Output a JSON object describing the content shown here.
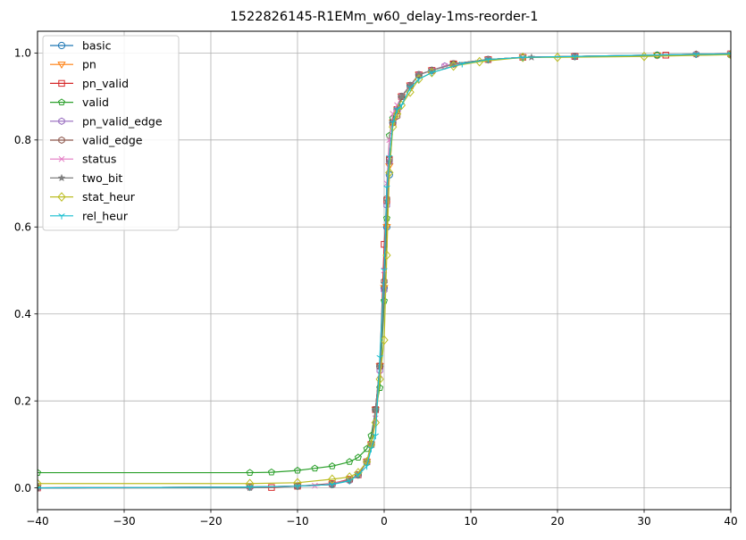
{
  "chart_data": {
    "type": "line",
    "title": "1522826145-R1EMm_w60_delay-1ms-reorder-1",
    "xlabel": "",
    "ylabel": "",
    "xlim": [
      -40,
      40
    ],
    "ylim": [
      -0.05,
      1.05
    ],
    "xticks": [
      -40,
      -30,
      -20,
      -10,
      0,
      10,
      20,
      30,
      40
    ],
    "xtick_labels": [
      "−40",
      "−30",
      "−20",
      "−10",
      "0",
      "10",
      "20",
      "30",
      "40"
    ],
    "yticks": [
      0.0,
      0.2,
      0.4,
      0.6,
      0.8,
      1.0
    ],
    "ytick_labels": [
      "0.0",
      "0.2",
      "0.4",
      "0.6",
      "0.8",
      "1.0"
    ],
    "grid": true,
    "legend_position": "upper-left",
    "series": [
      {
        "name": "basic",
        "color": "#1f77b4",
        "marker": "circle",
        "x": [
          -40,
          -15.5,
          -10,
          -6,
          -4,
          -3,
          -2,
          -1.5,
          -1,
          -0.5,
          0,
          0.3,
          0.6,
          1,
          1.5,
          2,
          3,
          4,
          5.5,
          8,
          12,
          16,
          22,
          31.5,
          40
        ],
        "y": [
          0.0,
          0.002,
          0.004,
          0.008,
          0.018,
          0.03,
          0.06,
          0.1,
          0.18,
          0.28,
          0.46,
          0.6,
          0.72,
          0.84,
          0.87,
          0.9,
          0.925,
          0.95,
          0.96,
          0.975,
          0.985,
          0.99,
          0.992,
          0.995,
          0.996
        ]
      },
      {
        "name": "pn",
        "color": "#ff7f0e",
        "marker": "triangle-down",
        "x": [
          -40,
          -15.5,
          -10,
          -6,
          -4,
          -3,
          -2,
          -1.5,
          -1,
          -0.5,
          0,
          0.3,
          0.6,
          1,
          1.5,
          2,
          3,
          4,
          5.5,
          8,
          12,
          16,
          22,
          31.5,
          40
        ],
        "y": [
          0.0,
          0.002,
          0.004,
          0.008,
          0.018,
          0.03,
          0.06,
          0.1,
          0.18,
          0.28,
          0.46,
          0.6,
          0.74,
          0.84,
          0.87,
          0.9,
          0.925,
          0.95,
          0.96,
          0.975,
          0.985,
          0.99,
          0.992,
          0.995,
          0.997
        ]
      },
      {
        "name": "pn_valid",
        "color": "#d62728",
        "marker": "square",
        "x": [
          -40,
          -13,
          -10,
          -6,
          -4,
          -3,
          -2,
          -1.5,
          -1,
          -0.5,
          0,
          0.3,
          0.6,
          1,
          1.5,
          2,
          3,
          4,
          5.5,
          8,
          12,
          16,
          22,
          32.5,
          40
        ],
        "y": [
          0.0,
          0.001,
          0.004,
          0.01,
          0.02,
          0.03,
          0.06,
          0.1,
          0.18,
          0.28,
          0.56,
          0.66,
          0.755,
          0.84,
          0.87,
          0.9,
          0.925,
          0.95,
          0.96,
          0.975,
          0.985,
          0.99,
          0.992,
          0.995,
          0.998
        ]
      },
      {
        "name": "valid",
        "color": "#2ca02c",
        "marker": "pentagon",
        "x": [
          -40,
          -15.5,
          -13,
          -10,
          -8,
          -6,
          -4,
          -3,
          -2,
          -1.5,
          -1,
          -0.5,
          0,
          0.3,
          0.6,
          1,
          1.5,
          2,
          3,
          4,
          5.5,
          8,
          12,
          16,
          22,
          31.5,
          40
        ],
        "y": [
          0.035,
          0.035,
          0.036,
          0.04,
          0.045,
          0.05,
          0.06,
          0.07,
          0.09,
          0.12,
          0.18,
          0.23,
          0.43,
          0.62,
          0.81,
          0.85,
          0.87,
          0.9,
          0.925,
          0.95,
          0.96,
          0.975,
          0.985,
          0.99,
          0.992,
          0.995,
          0.996
        ]
      },
      {
        "name": "pn_valid_edge",
        "color": "#9467bd",
        "marker": "hexagon",
        "x": [
          -40,
          -15.5,
          -10,
          -6,
          -4,
          -3,
          -2,
          -1.5,
          -1,
          -0.5,
          0,
          0.3,
          0.6,
          1,
          1.5,
          2,
          3,
          4,
          5.5,
          7,
          12,
          16,
          22,
          36,
          40
        ],
        "y": [
          0.0,
          0.002,
          0.004,
          0.008,
          0.018,
          0.03,
          0.06,
          0.1,
          0.18,
          0.27,
          0.455,
          0.65,
          0.75,
          0.84,
          0.87,
          0.9,
          0.925,
          0.95,
          0.96,
          0.97,
          0.985,
          0.99,
          0.992,
          0.997,
          0.998
        ]
      },
      {
        "name": "valid_edge",
        "color": "#8c564b",
        "marker": "hexagon",
        "x": [
          -40,
          -15.5,
          -10,
          -6,
          -4,
          -3,
          -2,
          -1.5,
          -1,
          -0.5,
          0,
          0.3,
          0.6,
          1,
          1.5,
          2,
          3,
          4,
          5.5,
          8,
          12,
          16,
          22,
          36,
          40
        ],
        "y": [
          0.0,
          0.002,
          0.004,
          0.008,
          0.018,
          0.03,
          0.06,
          0.1,
          0.18,
          0.28,
          0.475,
          0.665,
          0.755,
          0.84,
          0.855,
          0.9,
          0.925,
          0.95,
          0.96,
          0.975,
          0.985,
          0.99,
          0.992,
          0.997,
          0.998
        ]
      },
      {
        "name": "status",
        "color": "#e377c2",
        "marker": "x",
        "x": [
          -40,
          -15.5,
          -8,
          -6,
          -4,
          -3,
          -2,
          -1.5,
          -1,
          -0.5,
          0,
          0.3,
          0.6,
          1,
          1.5,
          2,
          3,
          4,
          5.5,
          7,
          12,
          16,
          22,
          36,
          40
        ],
        "y": [
          0.0,
          0.002,
          0.005,
          0.01,
          0.018,
          0.03,
          0.06,
          0.1,
          0.16,
          0.26,
          0.5,
          0.7,
          0.8,
          0.86,
          0.88,
          0.9,
          0.925,
          0.95,
          0.96,
          0.97,
          0.985,
          0.99,
          0.992,
          0.997,
          0.998
        ]
      },
      {
        "name": "two_bit",
        "color": "#7f7f7f",
        "marker": "star",
        "x": [
          -40,
          -15.5,
          -10,
          -6,
          -4,
          -3,
          -2,
          -1.5,
          -1,
          -0.5,
          0,
          0.3,
          0.6,
          1,
          1.5,
          2,
          3,
          4,
          5.5,
          8,
          12,
          17,
          22,
          36,
          40
        ],
        "y": [
          0.0,
          0.0,
          0.004,
          0.008,
          0.018,
          0.03,
          0.06,
          0.1,
          0.18,
          0.28,
          0.47,
          0.66,
          0.75,
          0.84,
          0.87,
          0.9,
          0.925,
          0.95,
          0.96,
          0.975,
          0.985,
          0.99,
          0.992,
          0.997,
          0.998
        ]
      },
      {
        "name": "stat_heur",
        "color": "#bcbd22",
        "marker": "diamond",
        "x": [
          -40,
          -15.5,
          -10,
          -6,
          -4,
          -3,
          -2,
          -1.5,
          -1,
          -0.5,
          0,
          0.3,
          0.6,
          1,
          1.5,
          2,
          3,
          4,
          5.5,
          8,
          11,
          16,
          20,
          30,
          40
        ],
        "y": [
          0.01,
          0.01,
          0.012,
          0.02,
          0.025,
          0.035,
          0.06,
          0.1,
          0.15,
          0.25,
          0.34,
          0.535,
          0.725,
          0.83,
          0.86,
          0.88,
          0.91,
          0.94,
          0.955,
          0.97,
          0.98,
          0.99,
          0.99,
          0.992,
          0.996
        ]
      },
      {
        "name": "rel_heur",
        "color": "#17becf",
        "marker": "tri-down",
        "x": [
          -40,
          -15.5,
          -10,
          -6,
          -4,
          -3,
          -2,
          -1.5,
          -1,
          -0.5,
          0,
          0.3,
          0.6,
          1,
          1.5,
          2,
          3,
          4,
          5.5,
          9,
          12,
          16,
          22,
          36,
          40
        ],
        "y": [
          0.0,
          0.002,
          0.004,
          0.008,
          0.016,
          0.03,
          0.05,
          0.09,
          0.12,
          0.3,
          0.5,
          0.69,
          0.76,
          0.84,
          0.87,
          0.88,
          0.92,
          0.94,
          0.955,
          0.975,
          0.985,
          0.99,
          0.992,
          0.997,
          0.998
        ]
      }
    ]
  }
}
